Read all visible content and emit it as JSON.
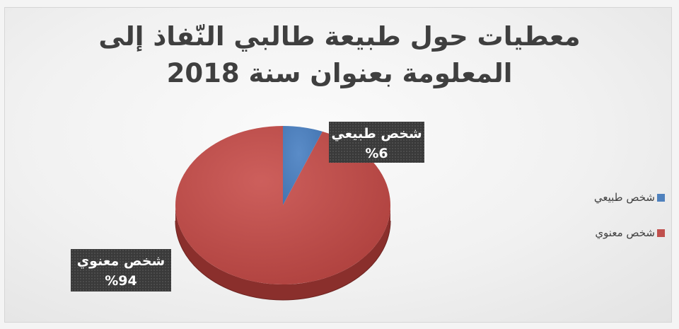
{
  "chart_data": {
    "type": "pie",
    "title": "معطيات حول طبيعة طالبي النّفاذ إلى المعلومة بعنوان سنة 2018",
    "categories": [
      "شخص طبيعي",
      "شخص معنوي"
    ],
    "values": [
      6,
      94
    ],
    "data_labels": [
      {
        "category": "شخص طبيعي",
        "percent": "%6"
      },
      {
        "category": "شخص معنوي",
        "percent": "%94"
      }
    ],
    "legend_position": "right",
    "colors": [
      "#4f81bd",
      "#c0504d"
    ]
  }
}
